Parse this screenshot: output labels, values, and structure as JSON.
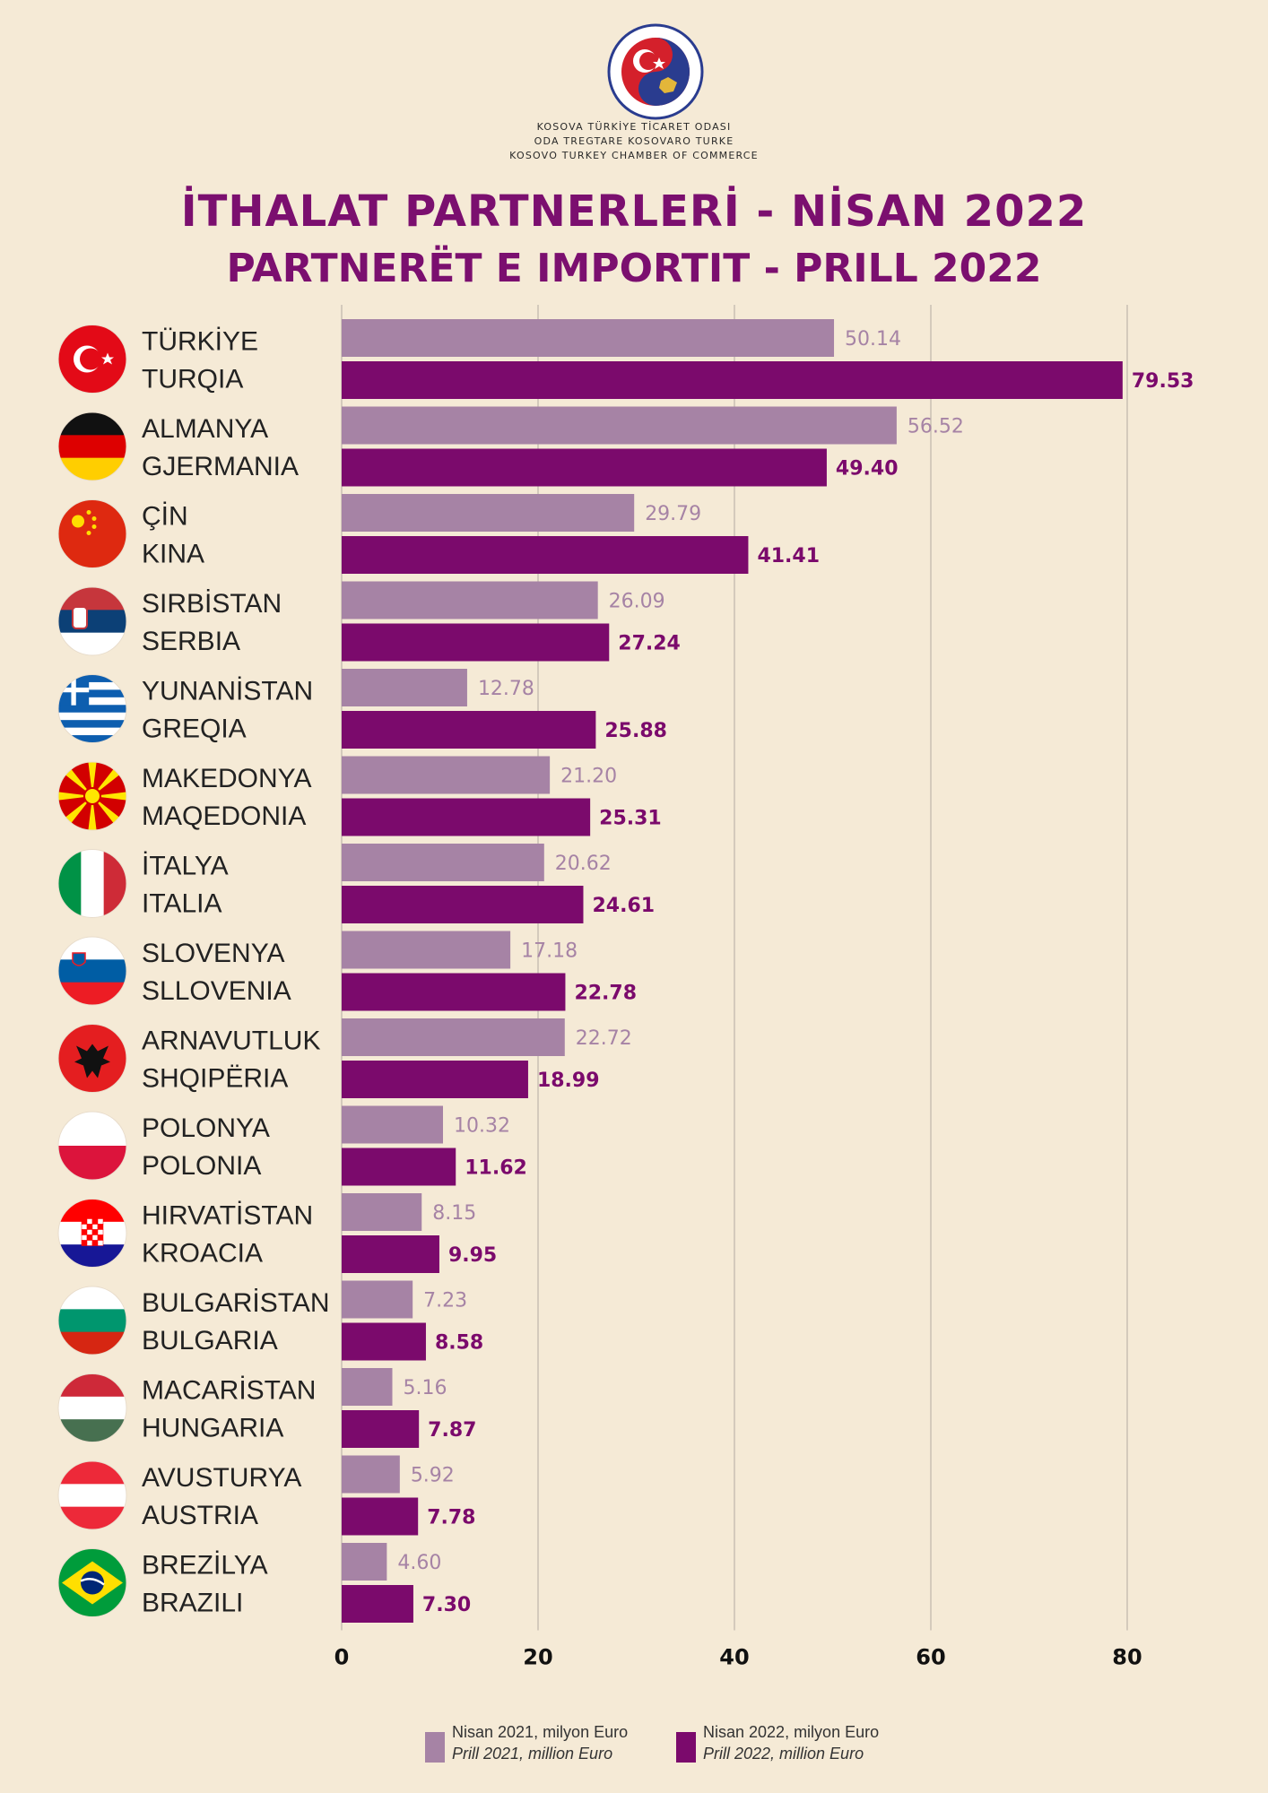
{
  "header": {
    "org_lines": [
      "KOSOVA TÜRKİYE TİCARET ODASI",
      "ODA TREGTARE KOSOVARO TURKE",
      "KOSOVO TURKEY CHAMBER OF COMMERCE"
    ],
    "logo_text": "ODA TREGTARE KOSOVARO TURKE · KOSOVA TÜRKİYE TİCARET ODASI",
    "title_tr": "İTHALAT PARTNERLERİ - NİSAN 2022",
    "title_sq": "PARTNERËT E IMPORTIT - PRILL 2022"
  },
  "colors": {
    "background": "#f5ead6",
    "title": "#7b0f6f",
    "series_2021": "#a683a5",
    "series_2022": "#7b0a6c",
    "grid": "#c9bfb3"
  },
  "chart_data": {
    "type": "bar",
    "orientation": "horizontal",
    "categories": [
      [
        "TÜRKİYE",
        "TURQIA"
      ],
      [
        "ALMANYA",
        "GJERMANIA"
      ],
      [
        "ÇİN",
        "KINA"
      ],
      [
        "SIRBİSTAN",
        "SERBIA"
      ],
      [
        "YUNANİSTAN",
        "GREQIA"
      ],
      [
        "MAKEDONYA",
        "MAQEDONIA"
      ],
      [
        "İTALYA",
        "ITALIA"
      ],
      [
        "SLOVENYA",
        "SLLOVENIA"
      ],
      [
        "ARNAVUTLUK",
        "SHQIPËRIA"
      ],
      [
        "POLONYA",
        "POLONIA"
      ],
      [
        "HIRVATİSTAN",
        "KROACIA"
      ],
      [
        "BULGARİSTAN",
        "BULGARIA"
      ],
      [
        "MACARİSTAN",
        "HUNGARIA"
      ],
      [
        "AVUSTURYA",
        "AUSTRIA"
      ],
      [
        "BREZİLYA",
        "BRAZILI"
      ]
    ],
    "flags": [
      "turkey-flag-icon",
      "germany-flag-icon",
      "china-flag-icon",
      "serbia-flag-icon",
      "greece-flag-icon",
      "north-macedonia-flag-icon",
      "italy-flag-icon",
      "slovenia-flag-icon",
      "albania-flag-icon",
      "poland-flag-icon",
      "croatia-flag-icon",
      "bulgaria-flag-icon",
      "hungary-flag-icon",
      "austria-flag-icon",
      "brazil-flag-icon"
    ],
    "series": [
      {
        "name": [
          "Nisan 2021, milyon Euro",
          "Prill 2021, million Euro"
        ],
        "values": [
          50.14,
          56.52,
          29.79,
          26.09,
          12.78,
          21.2,
          20.62,
          17.18,
          22.72,
          10.32,
          8.15,
          7.23,
          5.16,
          5.92,
          4.6
        ],
        "labels": [
          "50.14",
          "56.52",
          "29.79",
          "26.09",
          "12.78",
          "21.20",
          "20.62",
          "17.18",
          "22.72",
          "10.32",
          "8.15",
          "7.23",
          "5.16",
          "5.92",
          "4.60"
        ]
      },
      {
        "name": [
          "Nisan 2022, milyon Euro",
          "Prill 2022, million Euro"
        ],
        "values": [
          79.53,
          49.4,
          41.41,
          27.24,
          25.88,
          25.31,
          24.61,
          22.78,
          18.99,
          11.62,
          9.95,
          8.58,
          7.87,
          7.78,
          7.3
        ],
        "labels": [
          "79.53",
          "49.40",
          "41.41",
          "27.24",
          "25.88",
          "25.31",
          "24.61",
          "22.78",
          "18.99",
          "11.62",
          "9.95",
          "8.58",
          "7.87",
          "7.78",
          "7.30"
        ]
      }
    ],
    "xlim": [
      0,
      80
    ],
    "xticks": [
      "0",
      "20",
      "40",
      "60",
      "80"
    ],
    "grid": true,
    "legend": "bottom"
  }
}
